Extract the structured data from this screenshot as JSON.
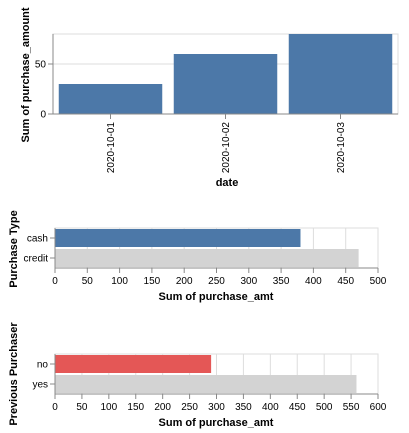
{
  "chart_data": [
    {
      "type": "bar",
      "orientation": "vertical",
      "xlabel": "date",
      "ylabel": "Sum of purchase_amount",
      "categories": [
        "2020-10-01",
        "2020-10-02",
        "2020-10-03"
      ],
      "values": [
        30,
        60,
        80
      ],
      "ylim": [
        0,
        80
      ],
      "yticks": [
        0,
        50
      ],
      "grid": true,
      "color": "#4c78a8"
    },
    {
      "type": "bar",
      "orientation": "horizontal",
      "ylabel": "Purchase Type",
      "xlabel": "Sum of purchase_amt",
      "categories": [
        "cash",
        "credit"
      ],
      "values": [
        380,
        470
      ],
      "colors": [
        "#4c78a8",
        "#d3d3d3"
      ],
      "xlim": [
        0,
        500
      ],
      "xticks": [
        0,
        50,
        100,
        150,
        200,
        250,
        300,
        350,
        400,
        450,
        500
      ],
      "grid": true
    },
    {
      "type": "bar",
      "orientation": "horizontal",
      "ylabel": "Previous Purchaser",
      "xlabel": "Sum of purchase_amt",
      "categories": [
        "no",
        "yes"
      ],
      "values": [
        290,
        560
      ],
      "colors": [
        "#e45756",
        "#d3d3d3"
      ],
      "xlim": [
        0,
        600
      ],
      "xticks": [
        0,
        50,
        100,
        150,
        200,
        250,
        300,
        350,
        400,
        450,
        500,
        550,
        600
      ],
      "grid": true
    }
  ]
}
